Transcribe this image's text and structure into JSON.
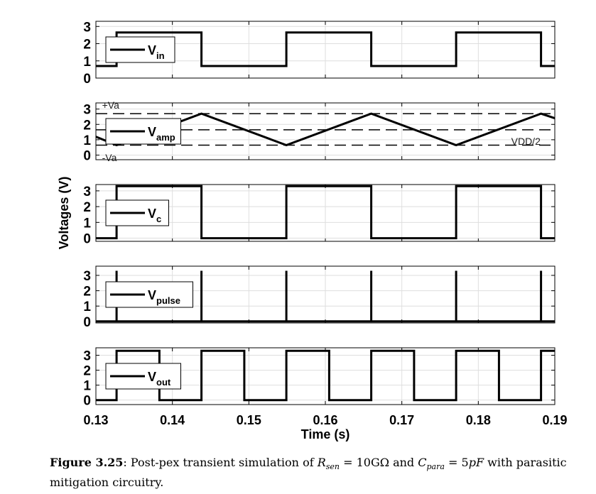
{
  "chart_data": {
    "type": "line",
    "ylabel": "Voltages (V)",
    "xlabel": "Time (s)",
    "xlim": [
      0.13,
      0.19
    ],
    "xticks": [
      "0.13",
      "0.14",
      "0.15",
      "0.16",
      "0.17",
      "0.18",
      "0.19"
    ],
    "grid": true,
    "panels": [
      {
        "legend": {
          "base": "V",
          "sub": "in"
        },
        "ylim": [
          0,
          3.3
        ],
        "yticks": [
          "0",
          "1",
          "2",
          "3"
        ],
        "series": {
          "x": [
            0.13,
            0.1327,
            0.1327,
            0.1438,
            0.1438,
            0.1549,
            0.1549,
            0.166,
            0.166,
            0.1771,
            0.1771,
            0.1882,
            0.1882,
            0.19
          ],
          "y": [
            0.7,
            0.7,
            2.65,
            2.65,
            0.7,
            0.7,
            2.65,
            2.65,
            0.7,
            0.7,
            2.65,
            2.65,
            0.7,
            0.7
          ]
        },
        "hlines": [],
        "annotations": []
      },
      {
        "legend": {
          "base": "V",
          "sub": "amp"
        },
        "ylim": [
          -0.3,
          3.4
        ],
        "yticks": [
          "0",
          "1",
          "2",
          "3"
        ],
        "series": {
          "x": [
            0.13,
            0.1327,
            0.1438,
            0.1549,
            0.166,
            0.1771,
            0.1882,
            0.19
          ],
          "y": [
            1.2,
            0.65,
            2.7,
            0.65,
            2.7,
            0.65,
            2.7,
            2.4
          ]
        },
        "hlines": [
          2.7,
          1.65,
          0.65
        ],
        "annotations": [
          {
            "text": "+Va",
            "x": 0.1308,
            "y": 3.25
          },
          {
            "text": "-Va",
            "x": 0.1308,
            "y": -0.15
          },
          {
            "text": "VDD/2",
            "x": 0.1843,
            "y": 0.9
          }
        ]
      },
      {
        "legend": {
          "base": "V",
          "sub": "c"
        },
        "ylim": [
          -0.2,
          3.4
        ],
        "yticks": [
          "0",
          "1",
          "2",
          "3"
        ],
        "series": {
          "x": [
            0.13,
            0.1327,
            0.1327,
            0.1438,
            0.1438,
            0.1549,
            0.1549,
            0.166,
            0.166,
            0.1771,
            0.1771,
            0.1882,
            0.1882,
            0.19
          ],
          "y": [
            0,
            0,
            3.3,
            3.3,
            0,
            0,
            3.3,
            3.3,
            0,
            0,
            3.3,
            3.3,
            0,
            0
          ]
        },
        "hlines": [],
        "annotations": []
      },
      {
        "legend": {
          "base": "V",
          "sub": "pulse"
        },
        "ylim": [
          -0.1,
          3.6
        ],
        "yticks": [
          "0",
          "1",
          "2",
          "3"
        ],
        "series": {
          "x": [
            0.13,
            0.1327,
            0.1327,
            0.1327,
            0.1438,
            0.1438,
            0.1438,
            0.1549,
            0.1549,
            0.1549,
            0.166,
            0.166,
            0.166,
            0.1771,
            0.1771,
            0.1771,
            0.1882,
            0.1882,
            0.1882,
            0.19
          ],
          "y": [
            0,
            0,
            3.3,
            0,
            0,
            3.3,
            0,
            0,
            3.3,
            0,
            0,
            3.3,
            0,
            0,
            3.3,
            0,
            0,
            3.3,
            0,
            0
          ]
        },
        "hlines": [],
        "annotations": []
      },
      {
        "legend": {
          "base": "V",
          "sub": "out"
        },
        "ylim": [
          -0.3,
          3.5
        ],
        "yticks": [
          "0",
          "1",
          "2",
          "3"
        ],
        "series": {
          "x": [
            0.13,
            0.1327,
            0.1327,
            0.1383,
            0.1383,
            0.1438,
            0.1438,
            0.1494,
            0.1494,
            0.1549,
            0.1549,
            0.1605,
            0.1605,
            0.166,
            0.166,
            0.1716,
            0.1716,
            0.1771,
            0.1771,
            0.1827,
            0.1827,
            0.1882,
            0.1882,
            0.19
          ],
          "y": [
            0,
            0,
            3.3,
            3.3,
            0,
            0,
            3.3,
            3.3,
            0,
            0,
            3.3,
            3.3,
            0,
            0,
            3.3,
            3.3,
            0,
            0,
            3.3,
            3.3,
            0,
            0,
            3.3,
            3.3
          ]
        },
        "hlines": [],
        "annotations": []
      }
    ]
  },
  "caption": {
    "figure_label": "Figure 3.25",
    "text_1": ": Post-pex transient simulation of ",
    "r_sen_sub": "sen",
    "eq1": " = 10GΩ and ",
    "c_para_sub": "para",
    "eq2": " = 5",
    "text_2": " with parasitic mitigation circuitry."
  }
}
